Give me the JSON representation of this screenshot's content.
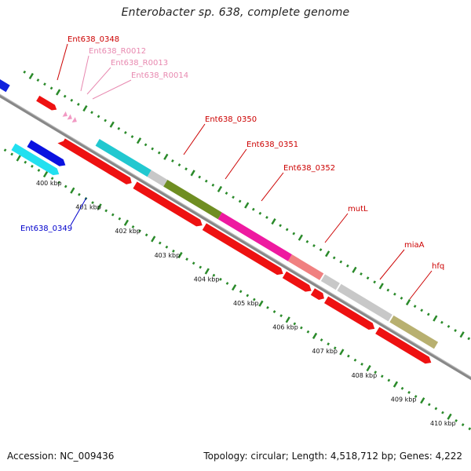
{
  "title": "Enterobacter sp. 638, complete genome",
  "footer": {
    "accession": "Accession: NC_009436",
    "summary": "Topology: circular; Length: 4,518,712 bp; Genes: 4,222"
  },
  "colors": {
    "backbone": "#888888",
    "tick": "#2a8a2a",
    "label_red": "#cc0000",
    "label_pink": "#e889b0",
    "label_blue": "#0000cc"
  },
  "kbp_ticks": [
    "400 kbp",
    "401 kbp",
    "402 kbp",
    "403 kbp",
    "404 kbp",
    "405 kbp",
    "406 kbp",
    "407 kbp",
    "408 kbp",
    "409 kbp",
    "410 kbp"
  ],
  "gene_labels": [
    {
      "text": "Ent638_0348",
      "color": "red"
    },
    {
      "text": "Ent638_R0012",
      "color": "pink"
    },
    {
      "text": "Ent638_R0013",
      "color": "pink"
    },
    {
      "text": "Ent638_R0014",
      "color": "pink"
    },
    {
      "text": "Ent638_0350",
      "color": "red"
    },
    {
      "text": "Ent638_0351",
      "color": "red"
    },
    {
      "text": "Ent638_0352",
      "color": "red"
    },
    {
      "text": "mutL",
      "color": "red"
    },
    {
      "text": "miaA",
      "color": "red"
    },
    {
      "text": "hfq",
      "color": "red"
    },
    {
      "text": "Ent638_0349",
      "color": "blue"
    }
  ],
  "feature_colors": [
    "#22c8d0",
    "#c8c8c8",
    "#6f8e22",
    "#ee1aa0",
    "#f08080",
    "#c8c8c8",
    "#c8c8c8",
    "#b8b070"
  ]
}
